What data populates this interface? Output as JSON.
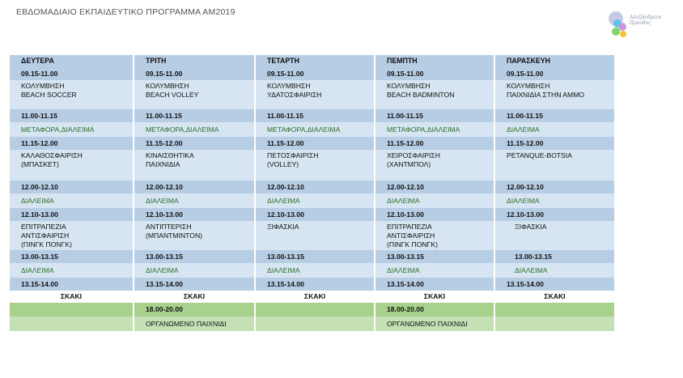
{
  "title": "ΕΒΔΟΜΑΔΙΑΙΟ ΕΚΠΑΙΔΕΥΤΙΚΟ ΠΡΟΓΡΑΜΜΑ ΑΜ2019",
  "logo": {
    "line1": "Αλεξάνδρεια",
    "line2": "Πρόοδος"
  },
  "days": [
    "ΔΕΥΤΕΡΑ",
    "ΤΡΙΤΗ",
    "ΤΕΤΑΡΤΗ",
    "ΠΕΜΠΤΗ",
    "ΠΑΡΑΣΚΕΥΗ"
  ],
  "rows": {
    "t1": [
      "09.15-11.00",
      "09.15-11.00",
      "09.15-11.00",
      "09.15-11.00",
      "09.15-11.00"
    ],
    "a1": [
      [
        "ΚΟΛΥΜΒΗΣΗ",
        "BEACH SOCCER"
      ],
      [
        "ΚΟΛΥΜΒΗΣΗ",
        "BEACH VOLLEY"
      ],
      [
        "ΚΟΛΥΜΒΗΣΗ",
        "ΥΔΑΤΟΣΦΑΙΡΙΣΗ"
      ],
      [
        "ΚΟΛΥΜΒΗΣΗ",
        "BEACH BADMINTON"
      ],
      [
        "ΚΟΛΥΜΒΗΣΗ",
        "ΠΑΙΧΝΙΔΙΑ ΣΤΗΝ ΑΜΜΟ"
      ]
    ],
    "t2": [
      "11.00-11.15",
      "11.00-11.15",
      "11.00-11.15",
      "11.00-11.15",
      "11.00-11.15"
    ],
    "b2": [
      "ΜΕΤΑΦΟΡΑ,ΔΙΑΛΕΙΜΑ",
      "ΜΕΤΑΦΟΡΑ,ΔΙΑΛΕΙΜΑ",
      "ΜΕΤΑΦΟΡΑ,ΔΙΑΛΕΙΜΑ",
      "ΜΕΤΑΦΟΡΑ,ΔΙΑΛΕΙΜΑ",
      "ΔΙΑΛΕΙΜΑ"
    ],
    "t3": [
      "11.15-12.00",
      "11.15-12.00",
      "11.15-12.00",
      "11.15-12.00",
      "11.15-12.00"
    ],
    "a3": [
      [
        "ΚΑΛΑΘΟΣΦΑΙΡΙΣΗ",
        "(ΜΠΑΣΚΕΤ)"
      ],
      [
        "ΚΙΝΑΙΣΘΗΤΙΚΑ",
        "ΠΑΙΧΝΙΔΙΑ"
      ],
      [
        "ΠΕΤΟΣΦΑΙΡΙΣΗ",
        "(VOLLEY)"
      ],
      [
        "ΧΕΙΡΟΣΦΑΙΡΙΣΗ",
        "(ΧΑΝΤΜΠΟΛ)"
      ],
      [
        "PETANQUE-BOTSIA"
      ]
    ],
    "t4": [
      "12.00-12.10",
      "12.00-12.10",
      "12.00-12.10",
      "12.00-12.10",
      "12.00-12.10"
    ],
    "b4": [
      "ΔΙΑΛΕΙΜΑ",
      "ΔΙΑΛΕΙΜΑ",
      "ΔΙΑΛΕΙΜΑ",
      "ΔΙΑΛΕΙΜΑ",
      "ΔΙΑΛΕΙΜΑ"
    ],
    "t5": [
      "12.10-13.00",
      "12.10-13.00",
      "12.10-13.00",
      "12.10-13.00",
      "12.10-13.00"
    ],
    "a5": [
      [
        "ΕΠΙΤΡΑΠΕΖΙΑ",
        "ΑΝΤΙΣΦΑΙΡΙΣΗ",
        "(ΠΙΝΓΚ ΠΟΝΓΚ)"
      ],
      [
        "ΑΝΤΙΠΤΕΡΙΣΗ",
        "(ΜΠΑΝΤΜΙΝΤΟΝ)"
      ],
      [
        "ΞΙΦΑΣΚΙΑ"
      ],
      [
        "ΕΠΙΤΡΑΠΕΖΙΑ",
        "ΑΝΤΙΣΦΑΙΡΙΣΗ",
        "(ΠΙΝΓΚ ΠΟΝΓΚ)"
      ],
      [
        "ΞΙΦΑΣΚΙΑ"
      ]
    ],
    "t6": [
      "13.00-13.15",
      "13.00-13.15",
      "13.00-13.15",
      "13.00-13.15",
      "13.00-13.15"
    ],
    "b6": [
      "ΔΙΑΛΕΙΜΑ",
      "ΔΙΑΛΕΙΜΑ",
      "ΔΙΑΛΕΙΜΑ",
      "ΔΙΑΛΕΙΜΑ",
      "ΔΙΑΛΕΙΜΑ"
    ],
    "t7": [
      "13.15-14.00",
      "13.15-14.00",
      "13.15-14.00",
      "13.15-14.00",
      "13.15-14.00"
    ],
    "c7": [
      "ΣΚΑΚΙ",
      "ΣΚΑΚΙ",
      "ΣΚΑΚΙ",
      "ΣΚΑΚΙ",
      "ΣΚΑΚΙ"
    ],
    "g1": [
      "",
      "18.00-20.00",
      "",
      "18.00-20.00",
      ""
    ],
    "g2": [
      "",
      "ΟΡΓΑΝΩΜΕΝΟ ΠΑΙΧΝΙΔΙ",
      "",
      "ΟΡΓΑΝΩΜΕΝΟ ΠΑΙΧΝΙΔΙ",
      ""
    ]
  }
}
